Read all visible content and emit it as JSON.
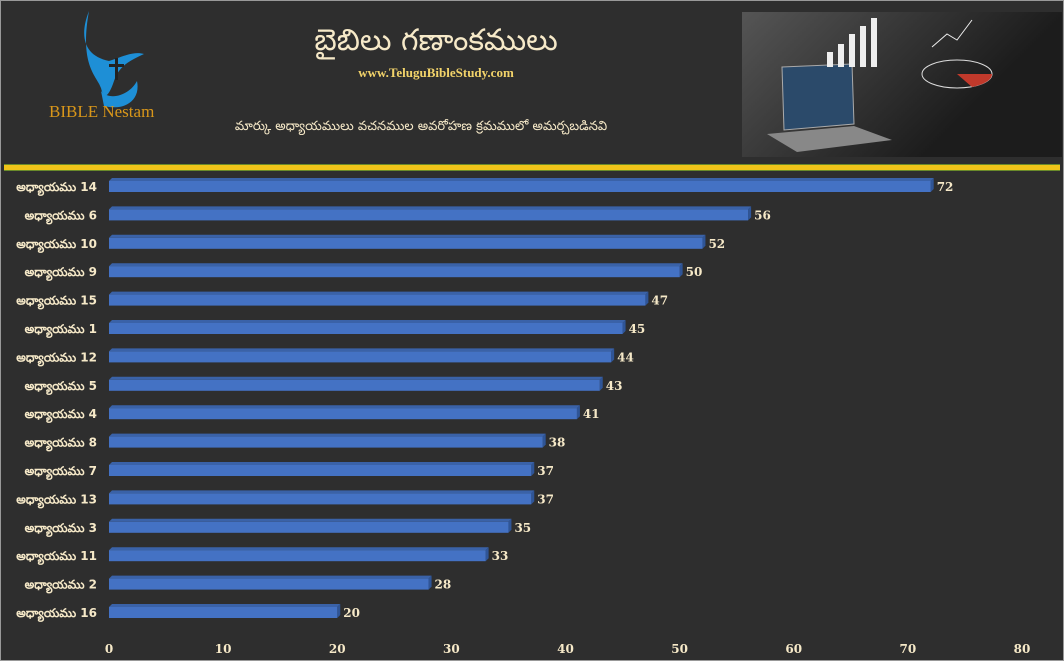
{
  "header": {
    "title": "బైబిలు గణాంకములు",
    "url": "www.TeluguBibleStudy.com",
    "subtitle": "మార్కు అధ్యాయములు వచనముల అవరోహణ క్రమములో అమర్చబడినవి",
    "brand": "BIBLE Nestam"
  },
  "colors": {
    "bar": "#4472c4",
    "background": "#2e2e2e",
    "text": "#f6e9c8",
    "accent_line": "#f0c419"
  },
  "chart_data": {
    "type": "bar",
    "orientation": "horizontal",
    "categories": [
      "అధ్యాయము 14",
      "అధ్యాయము 6",
      "అధ్యాయము 10",
      "అధ్యాయము 9",
      "అధ్యాయము 15",
      "అధ్యాయము 1",
      "అధ్యాయము 12",
      "అధ్యాయము 5",
      "అధ్యాయము 4",
      "అధ్యాయము 8",
      "అధ్యాయము 7",
      "అధ్యాయము 13",
      "అధ్యాయము 3",
      "అధ్యాయము 11",
      "అధ్యాయము 2",
      "అధ్యాయము 16"
    ],
    "values": [
      72,
      56,
      52,
      50,
      47,
      45,
      44,
      43,
      41,
      38,
      37,
      37,
      35,
      33,
      28,
      20
    ],
    "xlim": [
      0,
      80
    ],
    "ticks": [
      0,
      10,
      20,
      30,
      40,
      50,
      60,
      70,
      80
    ],
    "grid": false,
    "data_labels": true
  }
}
